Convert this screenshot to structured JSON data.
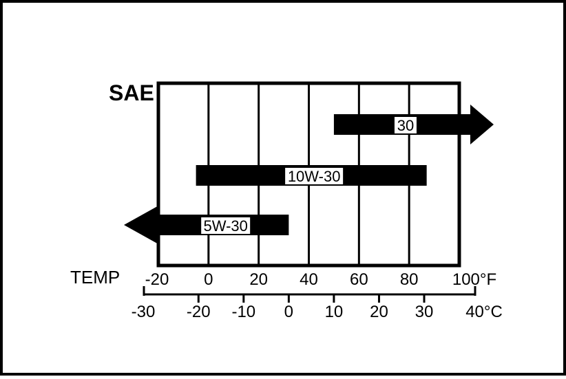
{
  "chart_data": {
    "type": "range-bar",
    "title": "SAE",
    "axis_label": "TEMP",
    "x_unit_f": "°F",
    "x_unit_c": "°C",
    "f_ticks": [
      "-20",
      "0",
      "20",
      "40",
      "60",
      "80",
      "100"
    ],
    "c_ticks": [
      "-30",
      "-20",
      "-10",
      "0",
      "10",
      "20",
      "30",
      "40"
    ],
    "xlim_f": [
      -20,
      100
    ],
    "grid": true,
    "series": [
      {
        "label": "30",
        "min_f": 50,
        "max_f": 100,
        "arrow_right": true,
        "arrow_left": false
      },
      {
        "label": "10W-30",
        "min_f": -5,
        "max_f": 87,
        "arrow_right": false,
        "arrow_left": false
      },
      {
        "label": "5W-30",
        "min_f": -20,
        "max_f": 32,
        "arrow_right": false,
        "arrow_left": true
      }
    ],
    "colors": {
      "ink": "#000000",
      "paper": "#ffffff"
    }
  }
}
